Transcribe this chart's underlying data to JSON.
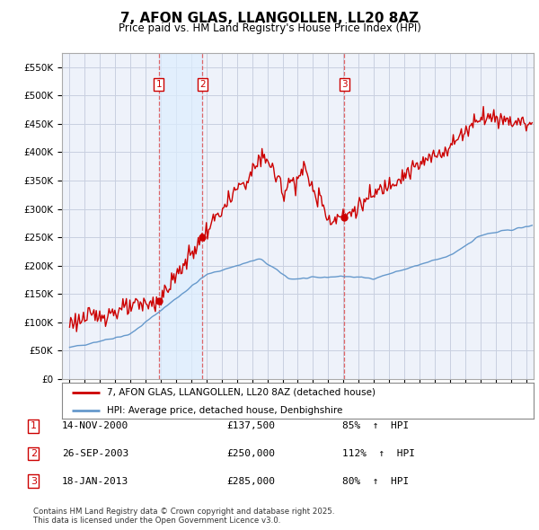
{
  "title": "7, AFON GLAS, LLANGOLLEN, LL20 8AZ",
  "subtitle": "Price paid vs. HM Land Registry's House Price Index (HPI)",
  "ylim": [
    0,
    575000
  ],
  "xlim_start": 1994.5,
  "xlim_end": 2025.5,
  "legend_house": "7, AFON GLAS, LLANGOLLEN, LL20 8AZ (detached house)",
  "legend_hpi": "HPI: Average price, detached house, Denbighshire",
  "sales": [
    {
      "num": 1,
      "date": "14-NOV-2000",
      "price": 137500,
      "pct": "85%",
      "year": 2000.87
    },
    {
      "num": 2,
      "date": "26-SEP-2003",
      "price": 250000,
      "pct": "112%",
      "year": 2003.73
    },
    {
      "num": 3,
      "date": "18-JAN-2013",
      "price": 285000,
      "pct": "80%",
      "year": 2013.05
    }
  ],
  "footer": "Contains HM Land Registry data © Crown copyright and database right 2025.\nThis data is licensed under the Open Government Licence v3.0.",
  "house_color": "#cc0000",
  "hpi_color": "#6699cc",
  "vline_color": "#dd4444",
  "shade_color": "#ddeeff",
  "bg_color": "#ffffff",
  "plot_bg_color": "#eef2fa",
  "grid_color": "#c8cfe0"
}
